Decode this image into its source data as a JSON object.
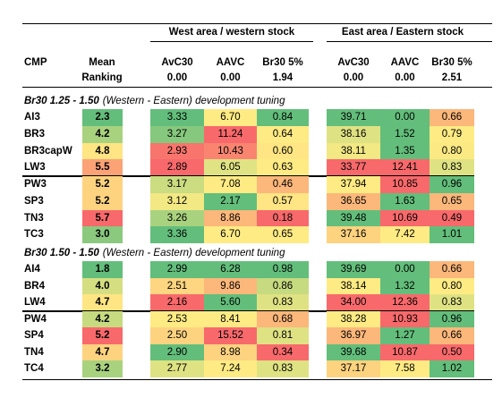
{
  "header": {
    "west": "West area / western stock",
    "east": "East area / Eastern stock",
    "cmp": "CMP",
    "mean": "Mean",
    "ranking": "Ranking",
    "columns": [
      "AvC30",
      "AAVC",
      "Br30 5%",
      "AvC30",
      "AAVC",
      "Br30 5%"
    ],
    "baseline": [
      "0.00",
      "0.00",
      "1.94",
      "0.00",
      "0.00",
      "2.51"
    ]
  },
  "sections": [
    {
      "title_bold": "Br30 1.25 - 1.50",
      "title_italic": "(Western - Eastern) development tuning",
      "groups": [
        [
          {
            "cmp": "AI3",
            "cells": [
              "2.3",
              "3.33",
              "6.70",
              "0.84",
              "39.71",
              "0.00",
              "0.66"
            ],
            "colors": [
              "#63be7b",
              "#63be7b",
              "#ffeb84",
              "#63be7b",
              "#63be7b",
              "#63be7b",
              "#fcb77a"
            ]
          },
          {
            "cmp": "BR3",
            "cells": [
              "4.2",
              "3.27",
              "11.24",
              "0.64",
              "38.16",
              "1.52",
              "0.79"
            ],
            "colors": [
              "#a9d27f",
              "#86c87d",
              "#f8696b",
              "#ffeb84",
              "#dfe283",
              "#63be7b",
              "#ffeb84"
            ]
          },
          {
            "cmp": "BR3capW",
            "cells": [
              "4.8",
              "2.93",
              "10.43",
              "0.60",
              "38.11",
              "1.35",
              "0.80"
            ],
            "colors": [
              "#ffe583",
              "#f8756d",
              "#f98570",
              "#ffe583",
              "#f2e884",
              "#63be7b",
              "#fbe983"
            ]
          },
          {
            "cmp": "LW3",
            "cells": [
              "5.5",
              "2.89",
              "6.05",
              "0.63",
              "33.77",
              "12.41",
              "0.83"
            ],
            "colors": [
              "#fba276",
              "#f8696b",
              "#e0e383",
              "#ffeb84",
              "#f8696b",
              "#f8696b",
              "#dfe283"
            ]
          }
        ],
        [
          {
            "cmp": "PW3",
            "cells": [
              "5.2",
              "3.17",
              "7.08",
              "0.46",
              "37.94",
              "10.85",
              "0.96"
            ],
            "colors": [
              "#fed380",
              "#cbdc81",
              "#ffeb84",
              "#fcb77a",
              "#ffeb84",
              "#f8696b",
              "#63be7b"
            ]
          },
          {
            "cmp": "SP3",
            "cells": [
              "5.2",
              "3.12",
              "2.17",
              "0.57",
              "36.65",
              "1.63",
              "0.65"
            ],
            "colors": [
              "#fed380",
              "#f2e884",
              "#63be7b",
              "#ffe583",
              "#fcb77a",
              "#63be7b",
              "#fcb77a"
            ]
          },
          {
            "cmp": "TN3",
            "cells": [
              "5.7",
              "3.26",
              "8.86",
              "0.18",
              "39.48",
              "10.69",
              "0.49"
            ],
            "colors": [
              "#f8696b",
              "#a9d27f",
              "#fcb77a",
              "#f8696b",
              "#63be7b",
              "#f8696b",
              "#f8696b"
            ]
          },
          {
            "cmp": "TC3",
            "cells": [
              "3.0",
              "3.36",
              "6.70",
              "0.65",
              "37.16",
              "7.42",
              "1.01"
            ],
            "colors": [
              "#8bc97e",
              "#63be7b",
              "#ffeb84",
              "#ffeb84",
              "#fed380",
              "#ffeb84",
              "#63be7b"
            ]
          }
        ]
      ]
    },
    {
      "title_bold": "Br30 1.50 - 1.50",
      "title_italic": "(Western - Eastern) development tuning",
      "groups": [
        [
          {
            "cmp": "AI4",
            "cells": [
              "1.8",
              "2.99",
              "6.28",
              "0.98",
              "39.69",
              "0.00",
              "0.66"
            ],
            "colors": [
              "#63be7b",
              "#63be7b",
              "#63be7b",
              "#63be7b",
              "#63be7b",
              "#63be7b",
              "#fcb77a"
            ]
          },
          {
            "cmp": "BR4",
            "cells": [
              "4.0",
              "2.51",
              "9.86",
              "0.86",
              "38.14",
              "1.32",
              "0.80"
            ],
            "colors": [
              "#d5df82",
              "#fed580",
              "#fcb77a",
              "#c6da80",
              "#ffeb84",
              "#63be7b",
              "#ffeb84"
            ]
          },
          {
            "cmp": "LW4",
            "cells": [
              "4.7",
              "2.16",
              "5.60",
              "0.83",
              "34.00",
              "12.36",
              "0.83"
            ],
            "colors": [
              "#ffe583",
              "#f8696b",
              "#63be7b",
              "#dfe283",
              "#f8696b",
              "#f8696b",
              "#dfe283"
            ]
          }
        ],
        [
          {
            "cmp": "PW4",
            "cells": [
              "4.2",
              "2.53",
              "8.41",
              "0.68",
              "38.28",
              "10.93",
              "0.96"
            ],
            "colors": [
              "#c6da80",
              "#ffeb84",
              "#ffeb84",
              "#fcb77a",
              "#ffeb84",
              "#f8696b",
              "#63be7b"
            ]
          },
          {
            "cmp": "SP4",
            "cells": [
              "5.2",
              "2.50",
              "15.52",
              "0.81",
              "36.97",
              "1.27",
              "0.66"
            ],
            "colors": [
              "#f8696b",
              "#fed380",
              "#f8696b",
              "#dfe283",
              "#fcb77a",
              "#63be7b",
              "#fcb77a"
            ]
          },
          {
            "cmp": "TN4",
            "cells": [
              "4.7",
              "2.90",
              "8.98",
              "0.34",
              "39.68",
              "10.87",
              "0.50"
            ],
            "colors": [
              "#fed380",
              "#63be7b",
              "#fed380",
              "#f8696b",
              "#63be7b",
              "#f8696b",
              "#f8696b"
            ]
          },
          {
            "cmp": "TC4",
            "cells": [
              "3.2",
              "2.77",
              "7.24",
              "0.83",
              "37.17",
              "7.58",
              "1.02"
            ],
            "colors": [
              "#a9d27f",
              "#dfe283",
              "#ffeb84",
              "#dfe283",
              "#fed380",
              "#ffeb84",
              "#63be7b"
            ]
          }
        ]
      ]
    }
  ]
}
